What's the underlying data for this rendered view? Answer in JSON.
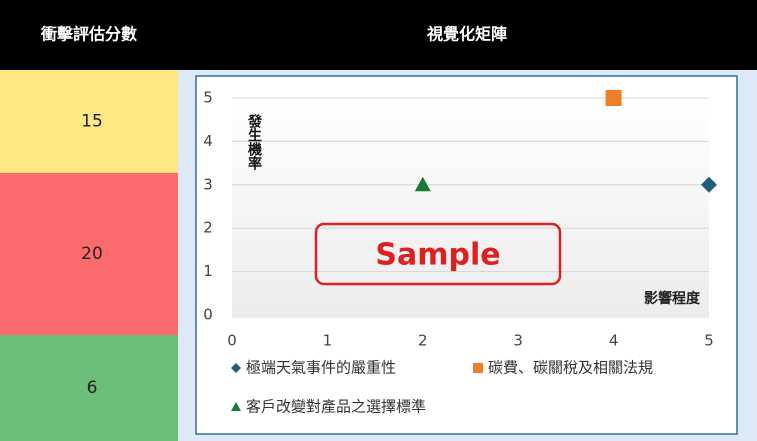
{
  "header": {
    "columns": [
      "衝擊評估分數",
      "視覺化矩陣"
    ]
  },
  "scores": [
    {
      "value": 15,
      "color": "#fde882"
    },
    {
      "value": 20,
      "color": "#fb6b6b"
    },
    {
      "value": 6,
      "color": "#6cbf79"
    }
  ],
  "watermark": "Sample",
  "chart_data": {
    "type": "scatter",
    "xlabel": "影響程度",
    "ylabel": "發生機率",
    "xlim": [
      0,
      5
    ],
    "ylim": [
      0,
      5
    ],
    "xticks": [
      0,
      1,
      2,
      3,
      4,
      5
    ],
    "yticks": [
      0,
      1,
      2,
      3,
      4,
      5
    ],
    "grid": true,
    "series": [
      {
        "name": "極端天氣事件的嚴重性",
        "color": "#1f5e7e",
        "marker": "diamond",
        "x": [
          5
        ],
        "values": [
          3
        ]
      },
      {
        "name": "碳費、碳關稅及相關法規",
        "color": "#f07d28",
        "marker": "square",
        "x": [
          4
        ],
        "values": [
          5
        ]
      },
      {
        "name": "客戶改變對產品之選擇標準",
        "color": "#187a36",
        "marker": "triangle",
        "x": [
          2
        ],
        "values": [
          3
        ]
      }
    ]
  }
}
